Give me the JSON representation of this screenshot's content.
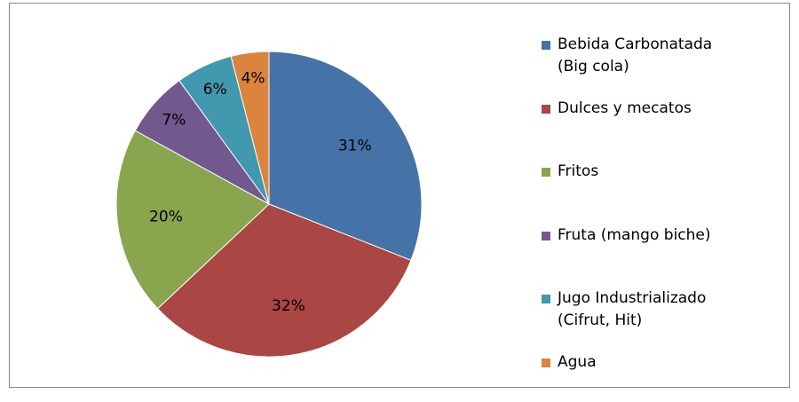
{
  "chart_data": {
    "type": "pie",
    "categories": [
      "Bebida Carbonatada (Big cola)",
      "Dulces y mecatos",
      "Fritos",
      "Fruta (mango biche)",
      "Jugo Industrializado (Cifrut, Hit)",
      "Agua"
    ],
    "values": [
      31,
      32,
      20,
      7,
      6,
      4
    ],
    "value_labels": [
      "31%",
      "32%",
      "20%",
      "7%",
      "6%",
      "4%"
    ],
    "colors": [
      "#4572a7",
      "#aa4643",
      "#89a54e",
      "#71588f",
      "#4198af",
      "#db843d"
    ],
    "legend": "right"
  }
}
